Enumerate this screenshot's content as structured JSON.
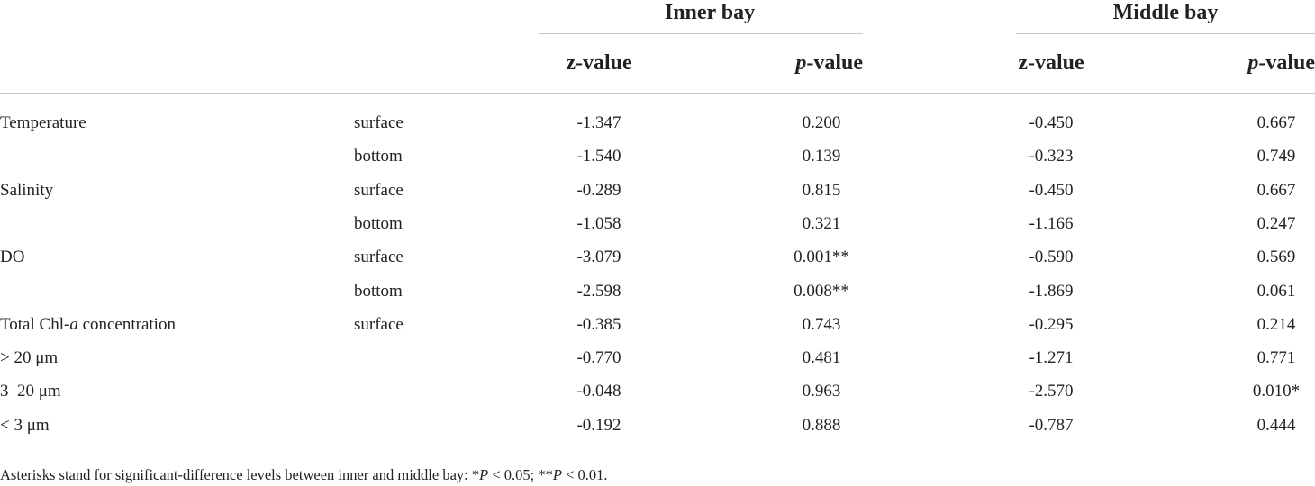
{
  "table": {
    "groups": [
      "Inner bay",
      "Middle bay"
    ],
    "columns": [
      "z-value",
      [
        "",
        "p",
        "-value"
      ],
      "z-value",
      [
        "",
        "p",
        "-value"
      ]
    ],
    "rows": [
      [
        "Temperature",
        "surface",
        "-1.347",
        "0.200",
        "-0.450",
        "0.667"
      ],
      [
        "",
        "bottom",
        "-1.540",
        "0.139",
        "-0.323",
        "0.749"
      ],
      [
        "Salinity",
        "surface",
        "-0.289",
        "0.815",
        "-0.450",
        "0.667"
      ],
      [
        "",
        "bottom",
        "-1.058",
        "0.321",
        "-1.166",
        "0.247"
      ],
      [
        "DO",
        "surface",
        "-3.079",
        "0.001**",
        "-0.590",
        "0.569"
      ],
      [
        "",
        "bottom",
        "-2.598",
        "0.008**",
        "-1.869",
        "0.061"
      ],
      [
        [
          "Total Chl-",
          "a",
          " concentration"
        ],
        "surface",
        "-0.385",
        "0.743",
        "-0.295",
        "0.214"
      ],
      [
        "> 20 μm",
        "",
        "-0.770",
        "0.481",
        "-1.271",
        "0.771"
      ],
      [
        "3–20 μm",
        "",
        "-0.048",
        "0.963",
        "-2.570",
        "0.010*"
      ],
      [
        "< 3 μm",
        "",
        "-0.192",
        "0.888",
        "-0.787",
        "0.444"
      ]
    ],
    "footnote": [
      "Asterisks stand for significant-difference levels between inner and middle bay: *",
      "P",
      " < 0.05; **",
      "P",
      " < 0.01."
    ]
  }
}
